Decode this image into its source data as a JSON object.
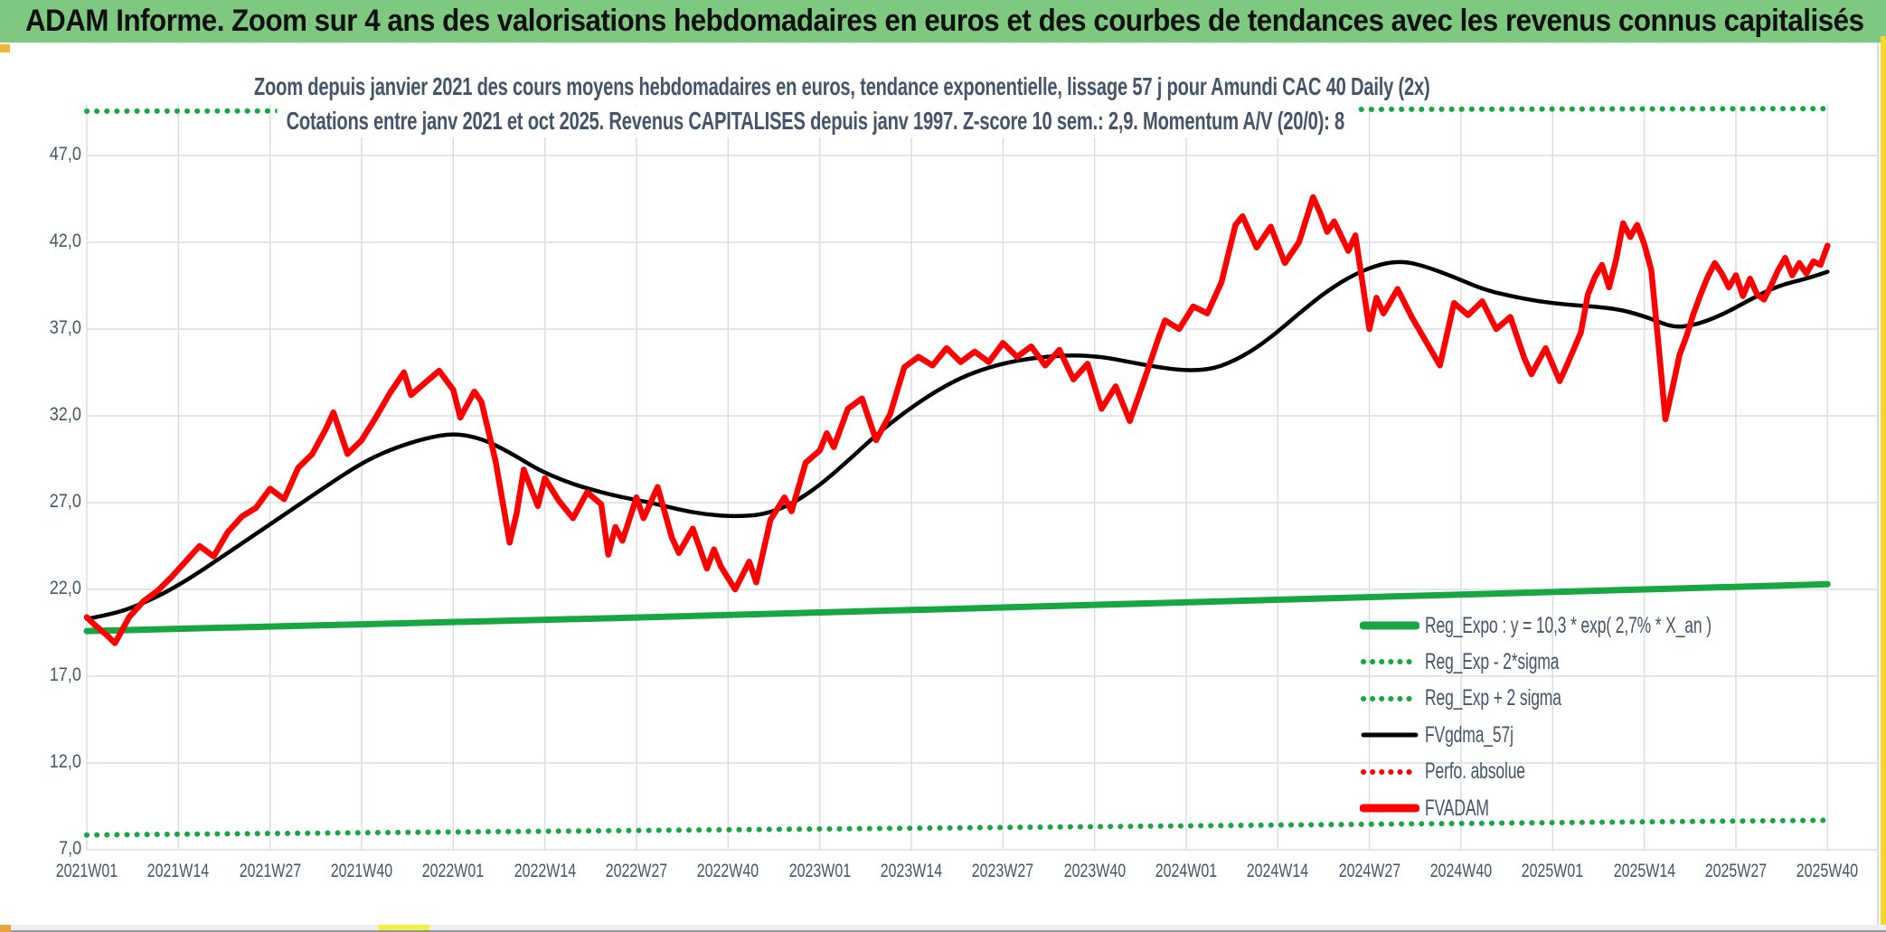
{
  "header": {
    "title": "ADAM Informe. Zoom sur 4 ans des valorisations hebdomadaires en euros et des courbes de tendances avec les revenus connus capitalisés"
  },
  "colors": {
    "header_bg": "#7ec87f",
    "title_text": "#44546a",
    "axis_text": "#44546a",
    "grid": "#d9dde5",
    "green": "#17a642",
    "red": "#fe0000",
    "black": "#000000",
    "accent_yellow": "#f5d62c",
    "accent_orange": "#e8a33d"
  },
  "chart_data": {
    "type": "line",
    "title": "Zoom depuis janvier 2021 des cours moyens hebdomadaires en euros, tendance exponentielle, lissage 57 j pour Amundi CAC 40 Daily (2x)",
    "subtitle": "Cotations entre janv 2021 et oct 2025. Revenus CAPITALISES depuis janv 1997. Z-score 10 sem.: 2,9. Momentum A/V (20/0): 8",
    "grid": true,
    "legend_position": "inside-right-bottom",
    "x_axis": {
      "unit": "ISO week index from 2021W01",
      "range_weeks": [
        0,
        247
      ],
      "tick_step_weeks": 13,
      "tick_labels": [
        "2021W01",
        "2021W14",
        "2021W27",
        "2021W40",
        "2022W01",
        "2022W14",
        "2022W27",
        "2022W40",
        "2023W01",
        "2023W14",
        "2023W27",
        "2023W40",
        "2024W01",
        "2024W14",
        "2024W27",
        "2024W40",
        "2025W01",
        "2025W14",
        "2025W27",
        "2025W40"
      ]
    },
    "y_axis": {
      "min": 7.0,
      "max": 47.0,
      "tick_interval": 5.0,
      "tick_labels": [
        "47,0",
        "42,0",
        "37,0",
        "32,0",
        "27,0",
        "22,0",
        "17,0",
        "12,0",
        "7,0"
      ],
      "plot_top_value": 49.8
    },
    "series": [
      {
        "key": "reg_expo",
        "name": "Reg_Expo : y = 10,3 * exp( 2,7% *  X_an )",
        "color": "#17a642",
        "style": "solid",
        "width": 7,
        "smooth": true,
        "points": [
          [
            0,
            19.6
          ],
          [
            50,
            20.1
          ],
          [
            100,
            20.6
          ],
          [
            150,
            21.2
          ],
          [
            200,
            21.75
          ],
          [
            247,
            22.3
          ]
        ]
      },
      {
        "key": "reg_exp_minus_2sigma",
        "name": "Reg_Exp - 2*sigma",
        "color": "#17a642",
        "style": "dotted",
        "width": 6,
        "smooth": false,
        "points": [
          [
            0,
            7.85
          ],
          [
            120,
            8.25
          ],
          [
            247,
            8.7
          ]
        ]
      },
      {
        "key": "reg_exp_plus_2sigma",
        "name": "Reg_Exp + 2 sigma",
        "color": "#17a642",
        "style": "dotted",
        "width": 6,
        "smooth": false,
        "points": [
          [
            0,
            49.55
          ],
          [
            120,
            49.62
          ],
          [
            247,
            49.7
          ]
        ]
      },
      {
        "key": "fvgdma_57j",
        "name": "FVgdma_57j",
        "color": "#000000",
        "style": "solid",
        "width": 4.5,
        "smooth": true,
        "points": [
          [
            0,
            20.3
          ],
          [
            4,
            20.6
          ],
          [
            8,
            21.2
          ],
          [
            12,
            22.0
          ],
          [
            16,
            23.0
          ],
          [
            20,
            24.1
          ],
          [
            24,
            25.2
          ],
          [
            28,
            26.3
          ],
          [
            32,
            27.4
          ],
          [
            36,
            28.5
          ],
          [
            40,
            29.5
          ],
          [
            44,
            30.2
          ],
          [
            48,
            30.7
          ],
          [
            52,
            31.0
          ],
          [
            56,
            30.7
          ],
          [
            60,
            29.9
          ],
          [
            64,
            28.9
          ],
          [
            68,
            28.2
          ],
          [
            72,
            27.7
          ],
          [
            76,
            27.3
          ],
          [
            80,
            27.0
          ],
          [
            84,
            26.6
          ],
          [
            88,
            26.3
          ],
          [
            92,
            26.2
          ],
          [
            96,
            26.3
          ],
          [
            100,
            26.9
          ],
          [
            104,
            28.0
          ],
          [
            108,
            29.4
          ],
          [
            112,
            30.9
          ],
          [
            116,
            32.2
          ],
          [
            120,
            33.3
          ],
          [
            124,
            34.2
          ],
          [
            128,
            34.8
          ],
          [
            132,
            35.2
          ],
          [
            136,
            35.4
          ],
          [
            140,
            35.5
          ],
          [
            144,
            35.4
          ],
          [
            148,
            35.1
          ],
          [
            152,
            34.8
          ],
          [
            156,
            34.6
          ],
          [
            160,
            34.7
          ],
          [
            164,
            35.4
          ],
          [
            168,
            36.5
          ],
          [
            172,
            37.9
          ],
          [
            176,
            39.2
          ],
          [
            180,
            40.2
          ],
          [
            184,
            40.8
          ],
          [
            187,
            40.9
          ],
          [
            190,
            40.6
          ],
          [
            194,
            40.0
          ],
          [
            198,
            39.3
          ],
          [
            202,
            38.9
          ],
          [
            206,
            38.6
          ],
          [
            210,
            38.4
          ],
          [
            214,
            38.3
          ],
          [
            218,
            38.1
          ],
          [
            222,
            37.6
          ],
          [
            225,
            37.1
          ],
          [
            228,
            37.2
          ],
          [
            232,
            37.8
          ],
          [
            236,
            38.7
          ],
          [
            240,
            39.5
          ],
          [
            244,
            39.9
          ],
          [
            247,
            40.3
          ]
        ]
      },
      {
        "key": "perfo_absolue",
        "name": "Perfo. absolue",
        "color": "#fe0000",
        "style": "dotted",
        "width": 5,
        "smooth": false,
        "coincides_with": "fvadam",
        "points": []
      },
      {
        "key": "fvadam",
        "name": "FVADAM",
        "color": "#fe0000",
        "style": "solid",
        "width": 6.5,
        "smooth": false,
        "points": [
          [
            0,
            20.4
          ],
          [
            1,
            20.0
          ],
          [
            3,
            19.3
          ],
          [
            4,
            18.9
          ],
          [
            6,
            20.4
          ],
          [
            8,
            21.3
          ],
          [
            10,
            21.9
          ],
          [
            12,
            22.7
          ],
          [
            14,
            23.6
          ],
          [
            16,
            24.5
          ],
          [
            18,
            23.9
          ],
          [
            20,
            25.3
          ],
          [
            22,
            26.2
          ],
          [
            24,
            26.7
          ],
          [
            26,
            27.8
          ],
          [
            28,
            27.2
          ],
          [
            30,
            29.0
          ],
          [
            32,
            29.8
          ],
          [
            34,
            31.3
          ],
          [
            35,
            32.2
          ],
          [
            37,
            29.8
          ],
          [
            39,
            30.6
          ],
          [
            41,
            31.9
          ],
          [
            43,
            33.3
          ],
          [
            45,
            34.5
          ],
          [
            46,
            33.2
          ],
          [
            48,
            33.9
          ],
          [
            50,
            34.6
          ],
          [
            52,
            33.5
          ],
          [
            53,
            31.9
          ],
          [
            55,
            33.4
          ],
          [
            56,
            32.8
          ],
          [
            58,
            29.4
          ],
          [
            60,
            24.7
          ],
          [
            61,
            26.4
          ],
          [
            62,
            28.9
          ],
          [
            64,
            26.8
          ],
          [
            65,
            28.4
          ],
          [
            67,
            27.1
          ],
          [
            69,
            26.1
          ],
          [
            71,
            27.6
          ],
          [
            73,
            26.9
          ],
          [
            74,
            24.0
          ],
          [
            75,
            25.6
          ],
          [
            76,
            24.8
          ],
          [
            78,
            27.3
          ],
          [
            79,
            26.1
          ],
          [
            81,
            27.9
          ],
          [
            83,
            25.0
          ],
          [
            84,
            24.1
          ],
          [
            86,
            25.5
          ],
          [
            88,
            23.2
          ],
          [
            89,
            24.3
          ],
          [
            90,
            23.3
          ],
          [
            92,
            22.0
          ],
          [
            94,
            23.6
          ],
          [
            95,
            22.4
          ],
          [
            97,
            26.0
          ],
          [
            99,
            27.3
          ],
          [
            100,
            26.5
          ],
          [
            102,
            29.3
          ],
          [
            104,
            30.0
          ],
          [
            105,
            31.0
          ],
          [
            106,
            30.2
          ],
          [
            108,
            32.4
          ],
          [
            110,
            33.0
          ],
          [
            112,
            30.6
          ],
          [
            114,
            32.1
          ],
          [
            116,
            34.8
          ],
          [
            118,
            35.4
          ],
          [
            120,
            34.9
          ],
          [
            122,
            35.9
          ],
          [
            124,
            35.1
          ],
          [
            126,
            35.7
          ],
          [
            128,
            35.1
          ],
          [
            130,
            36.2
          ],
          [
            132,
            35.4
          ],
          [
            134,
            36.0
          ],
          [
            136,
            34.9
          ],
          [
            138,
            35.8
          ],
          [
            140,
            34.1
          ],
          [
            142,
            35.0
          ],
          [
            144,
            32.4
          ],
          [
            146,
            33.7
          ],
          [
            148,
            31.7
          ],
          [
            150,
            34.0
          ],
          [
            152,
            36.4
          ],
          [
            153,
            37.5
          ],
          [
            155,
            37.0
          ],
          [
            157,
            38.3
          ],
          [
            159,
            37.9
          ],
          [
            161,
            39.7
          ],
          [
            163,
            43.0
          ],
          [
            164,
            43.5
          ],
          [
            166,
            41.7
          ],
          [
            168,
            42.9
          ],
          [
            170,
            40.8
          ],
          [
            172,
            42.0
          ],
          [
            174,
            44.6
          ],
          [
            175,
            43.7
          ],
          [
            176,
            42.6
          ],
          [
            177,
            43.2
          ],
          [
            179,
            41.5
          ],
          [
            180,
            42.4
          ],
          [
            182,
            37.0
          ],
          [
            183,
            38.8
          ],
          [
            184,
            37.9
          ],
          [
            186,
            39.3
          ],
          [
            188,
            37.7
          ],
          [
            190,
            36.3
          ],
          [
            192,
            34.9
          ],
          [
            193,
            36.7
          ],
          [
            194,
            38.5
          ],
          [
            196,
            37.8
          ],
          [
            198,
            38.6
          ],
          [
            200,
            37.0
          ],
          [
            202,
            37.7
          ],
          [
            204,
            35.3
          ],
          [
            205,
            34.4
          ],
          [
            207,
            35.9
          ],
          [
            209,
            34.0
          ],
          [
            210,
            34.9
          ],
          [
            212,
            36.8
          ],
          [
            213,
            39.0
          ],
          [
            214,
            40.0
          ],
          [
            215,
            40.7
          ],
          [
            216,
            39.4
          ],
          [
            217,
            41.0
          ],
          [
            218,
            43.1
          ],
          [
            219,
            42.3
          ],
          [
            220,
            43.0
          ],
          [
            221,
            41.9
          ],
          [
            222,
            40.4
          ],
          [
            223,
            36.2
          ],
          [
            224,
            31.8
          ],
          [
            225,
            33.6
          ],
          [
            226,
            35.5
          ],
          [
            227,
            36.6
          ],
          [
            228,
            37.9
          ],
          [
            229,
            39.0
          ],
          [
            230,
            40.0
          ],
          [
            231,
            40.8
          ],
          [
            232,
            40.2
          ],
          [
            233,
            39.4
          ],
          [
            234,
            40.1
          ],
          [
            235,
            38.9
          ],
          [
            236,
            39.9
          ],
          [
            237,
            39.0
          ],
          [
            238,
            38.7
          ],
          [
            239,
            39.5
          ],
          [
            240,
            40.4
          ],
          [
            241,
            41.1
          ],
          [
            242,
            40.1
          ],
          [
            243,
            40.8
          ],
          [
            244,
            40.2
          ],
          [
            245,
            40.9
          ],
          [
            246,
            40.7
          ],
          [
            247,
            41.8
          ]
        ]
      }
    ]
  }
}
